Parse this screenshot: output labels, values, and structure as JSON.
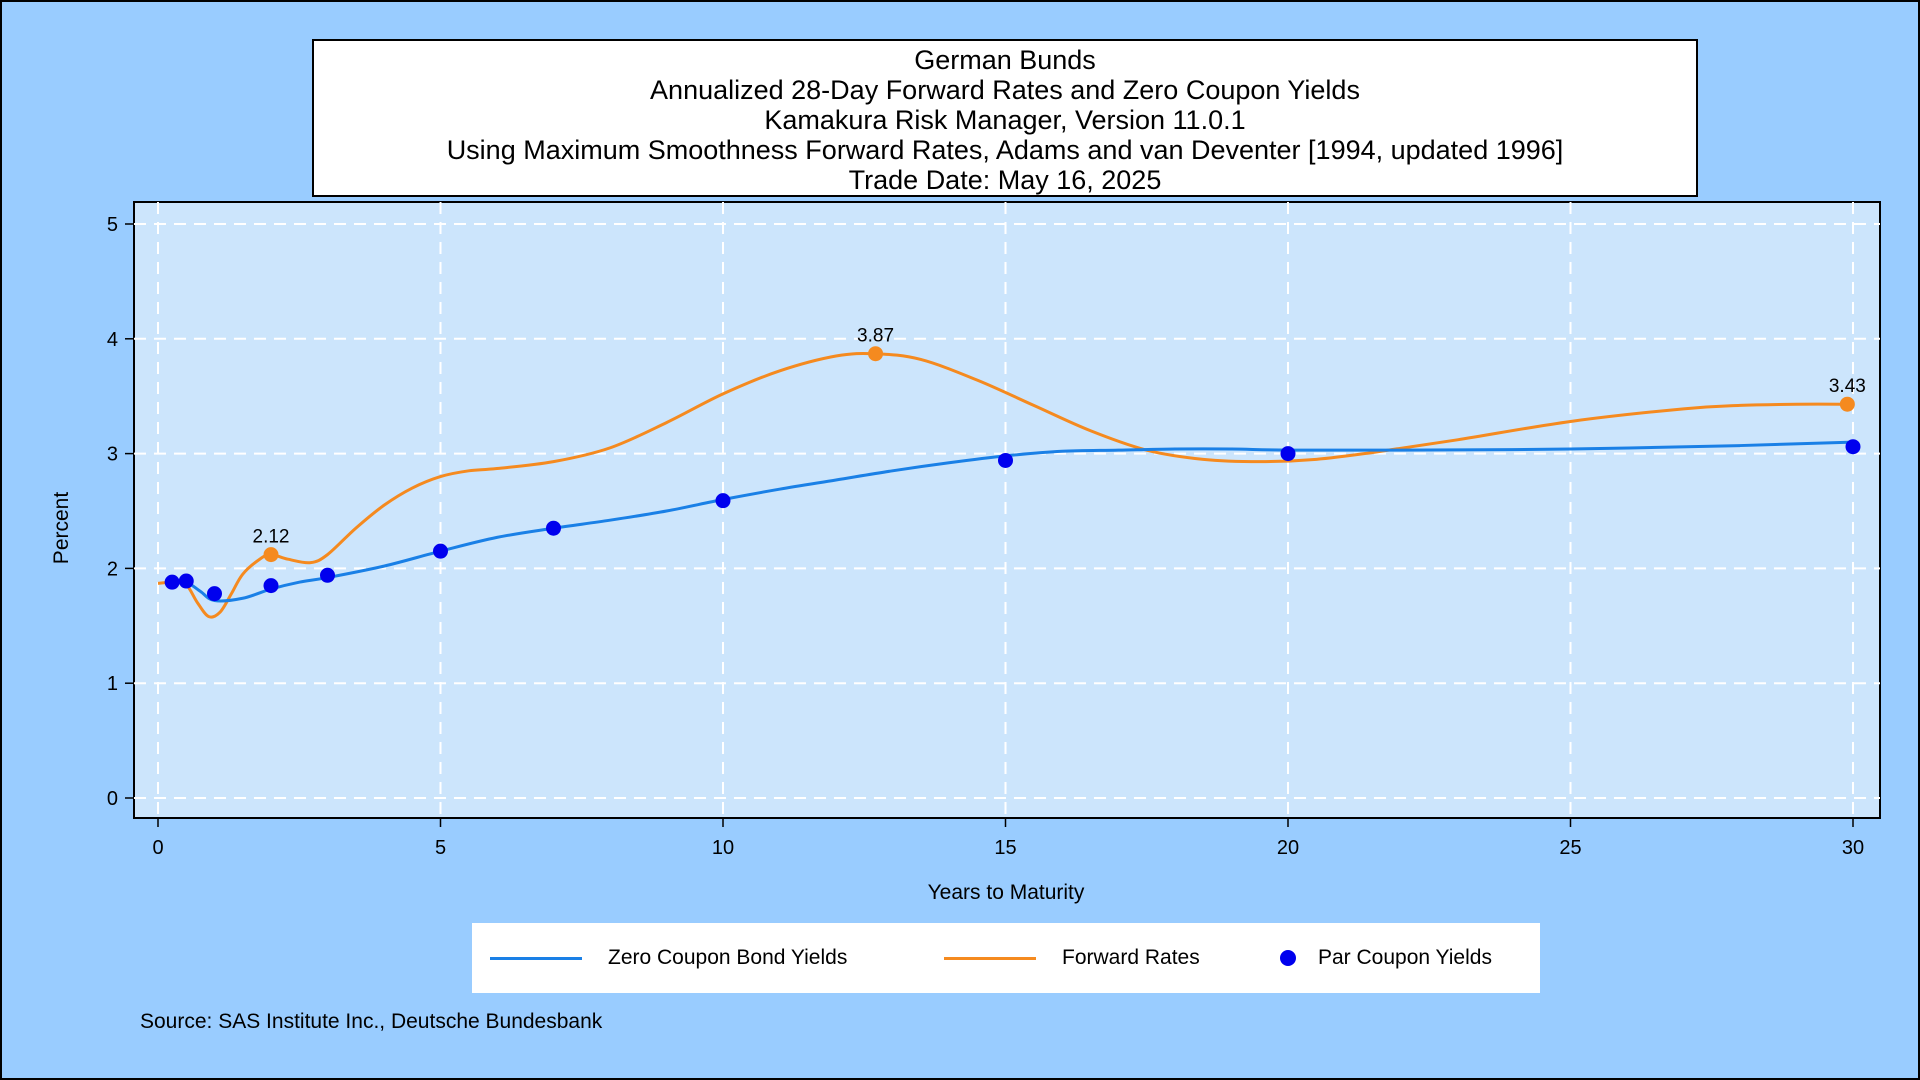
{
  "title_lines": [
    "German Bunds",
    "Annualized 28-Day Forward Rates and Zero Coupon Yields",
    "Kamakura Risk Manager, Version 11.0.1",
    "Using Maximum Smoothness Forward Rates, Adams and van Deventer [1994, updated 1996]",
    "Trade Date: May 16, 2025"
  ],
  "source": "Source: SAS Institute Inc., Deutsche Bundesbank",
  "colors": {
    "zero": "#1a80e6",
    "forward": "#f58a1f",
    "par": "#0000ee",
    "plot_bg": "#cce5fc",
    "page_bg": "#99ccff"
  },
  "chart_data": {
    "type": "line",
    "xlabel": "Years to Maturity",
    "ylabel": "Percent",
    "xlim": [
      0,
      30
    ],
    "ylim": [
      0,
      5
    ],
    "xticks": [
      0,
      5,
      10,
      15,
      20,
      25,
      30
    ],
    "yticks": [
      0,
      1,
      2,
      3,
      4,
      5
    ],
    "grid": true,
    "legend_position": "bottom",
    "series": [
      {
        "name": "Zero Coupon Bond Yields",
        "type": "line",
        "color": "#1a80e6",
        "x": [
          0.25,
          0.5,
          0.75,
          1,
          1.5,
          2,
          2.5,
          3,
          4,
          5,
          6,
          7,
          8,
          9,
          10,
          11,
          12,
          13,
          14,
          15,
          16,
          17,
          18,
          19,
          20,
          22,
          25,
          28,
          30
        ],
        "y": [
          1.88,
          1.88,
          1.8,
          1.72,
          1.74,
          1.82,
          1.88,
          1.92,
          2.02,
          2.15,
          2.27,
          2.35,
          2.42,
          2.5,
          2.6,
          2.69,
          2.77,
          2.85,
          2.92,
          2.98,
          3.02,
          3.03,
          3.04,
          3.04,
          3.03,
          3.03,
          3.04,
          3.07,
          3.1
        ]
      },
      {
        "name": "Forward Rates",
        "type": "line",
        "color": "#f58a1f",
        "x": [
          0,
          0.3,
          0.5,
          0.7,
          0.9,
          1.1,
          1.3,
          1.5,
          1.8,
          2,
          2.3,
          2.7,
          3,
          3.5,
          4,
          4.5,
          5,
          5.5,
          6,
          7,
          8,
          9,
          10,
          11,
          12,
          12.7,
          13.5,
          14.5,
          15.5,
          16.5,
          17.5,
          18.5,
          19.5,
          20.5,
          21.5,
          23,
          25,
          27,
          28,
          29,
          30
        ],
        "y": [
          1.87,
          1.88,
          1.86,
          1.7,
          1.58,
          1.62,
          1.78,
          1.95,
          2.08,
          2.12,
          2.08,
          2.05,
          2.12,
          2.35,
          2.55,
          2.7,
          2.8,
          2.85,
          2.87,
          2.93,
          3.05,
          3.27,
          3.52,
          3.72,
          3.85,
          3.87,
          3.82,
          3.64,
          3.42,
          3.2,
          3.03,
          2.95,
          2.93,
          2.95,
          3.01,
          3.12,
          3.28,
          3.39,
          3.42,
          3.43,
          3.43
        ]
      },
      {
        "name": "Par Coupon Yields",
        "type": "scatter",
        "color": "#0000ee",
        "x": [
          0.25,
          0.5,
          1,
          2,
          3,
          5,
          7,
          10,
          15,
          20,
          30
        ],
        "y": [
          1.88,
          1.89,
          1.78,
          1.85,
          1.94,
          2.15,
          2.35,
          2.59,
          2.94,
          3.0,
          3.06
        ]
      }
    ],
    "annotations": [
      {
        "x": 2,
        "y": 2.12,
        "label": "2.12"
      },
      {
        "x": 12.7,
        "y": 3.87,
        "label": "3.87"
      },
      {
        "x": 29.9,
        "y": 3.43,
        "label": "3.43"
      }
    ]
  }
}
